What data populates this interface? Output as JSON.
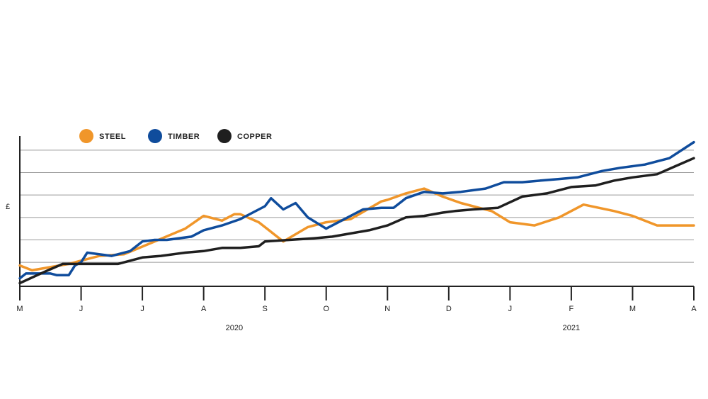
{
  "chart_data": {
    "type": "line",
    "xlabel": "",
    "ylabel": "£",
    "months": [
      "M",
      "J",
      "J",
      "A",
      "S",
      "O",
      "N",
      "D",
      "J",
      "F",
      "M",
      "A"
    ],
    "years": [
      {
        "label": "2020",
        "month_index": 3.5
      },
      {
        "label": "2021",
        "month_index": 9.0
      }
    ],
    "xlim": [
      0,
      11
    ],
    "ylim": [
      0,
      100
    ],
    "y_gridlines": [
      15,
      29,
      43,
      57,
      71,
      85
    ],
    "grid": true,
    "legend_position": "top-left",
    "series": [
      {
        "name": "STEEL",
        "color": "#f0962a",
        "points": [
          [
            0,
            13
          ],
          [
            0.2,
            10
          ],
          [
            0.5,
            12
          ],
          [
            0.8,
            14
          ],
          [
            1.0,
            16
          ],
          [
            1.1,
            17
          ],
          [
            1.3,
            19
          ],
          [
            1.7,
            20
          ],
          [
            2.2,
            28
          ],
          [
            2.7,
            36
          ],
          [
            3.0,
            44
          ],
          [
            3.3,
            41
          ],
          [
            3.5,
            45
          ],
          [
            3.6,
            45
          ],
          [
            3.9,
            40
          ],
          [
            4.3,
            28
          ],
          [
            4.7,
            37
          ],
          [
            5.0,
            40
          ],
          [
            5.4,
            42
          ],
          [
            5.9,
            53
          ],
          [
            6.0,
            54
          ],
          [
            6.3,
            58
          ],
          [
            6.6,
            61
          ],
          [
            6.9,
            56
          ],
          [
            7.2,
            52
          ],
          [
            7.5,
            49
          ],
          [
            7.7,
            47
          ],
          [
            8.0,
            40
          ],
          [
            8.4,
            38
          ],
          [
            8.8,
            43
          ],
          [
            9.2,
            51
          ],
          [
            9.7,
            47
          ],
          [
            10.0,
            44
          ],
          [
            10.4,
            38
          ],
          [
            10.9,
            38
          ],
          [
            11.0,
            38
          ]
        ]
      },
      {
        "name": "TIMBER",
        "color": "#0f4c9c",
        "points": [
          [
            0,
            5
          ],
          [
            0.1,
            8
          ],
          [
            0.5,
            8
          ],
          [
            0.6,
            7
          ],
          [
            0.8,
            7
          ],
          [
            0.9,
            13
          ],
          [
            1.0,
            15
          ],
          [
            1.1,
            21
          ],
          [
            1.5,
            19
          ],
          [
            1.8,
            22
          ],
          [
            2.0,
            28
          ],
          [
            2.2,
            29
          ],
          [
            2.4,
            29
          ],
          [
            2.8,
            31
          ],
          [
            3.0,
            35
          ],
          [
            3.3,
            38
          ],
          [
            3.6,
            42
          ],
          [
            3.8,
            46
          ],
          [
            4.0,
            50
          ],
          [
            4.1,
            55
          ],
          [
            4.3,
            48
          ],
          [
            4.5,
            52
          ],
          [
            4.7,
            43
          ],
          [
            5.0,
            36
          ],
          [
            5.3,
            42
          ],
          [
            5.6,
            48
          ],
          [
            5.9,
            49
          ],
          [
            6.1,
            49
          ],
          [
            6.3,
            55
          ],
          [
            6.6,
            59
          ],
          [
            6.9,
            58
          ],
          [
            7.2,
            59
          ],
          [
            7.4,
            60
          ],
          [
            7.6,
            61
          ],
          [
            7.9,
            65
          ],
          [
            8.2,
            65
          ],
          [
            8.5,
            66
          ],
          [
            8.8,
            67
          ],
          [
            9.1,
            68
          ],
          [
            9.5,
            72
          ],
          [
            9.8,
            74
          ],
          [
            10.2,
            76
          ],
          [
            10.6,
            80
          ],
          [
            11.0,
            90
          ]
        ]
      },
      {
        "name": "COPPER",
        "color": "#1f1f1f",
        "points": [
          [
            0,
            2
          ],
          [
            0.4,
            9
          ],
          [
            0.7,
            14
          ],
          [
            1.0,
            14
          ],
          [
            1.3,
            14
          ],
          [
            1.6,
            14
          ],
          [
            2.0,
            18
          ],
          [
            2.3,
            19
          ],
          [
            2.7,
            21
          ],
          [
            3.0,
            22
          ],
          [
            3.3,
            24
          ],
          [
            3.6,
            24
          ],
          [
            3.9,
            25
          ],
          [
            4.0,
            28
          ],
          [
            4.4,
            29
          ],
          [
            4.8,
            30
          ],
          [
            5.1,
            31
          ],
          [
            5.4,
            33
          ],
          [
            5.7,
            35
          ],
          [
            6.0,
            38
          ],
          [
            6.3,
            43
          ],
          [
            6.6,
            44
          ],
          [
            6.9,
            46
          ],
          [
            7.1,
            47
          ],
          [
            7.4,
            48
          ],
          [
            7.8,
            49
          ],
          [
            8.2,
            56
          ],
          [
            8.6,
            58
          ],
          [
            9.0,
            62
          ],
          [
            9.4,
            63
          ],
          [
            9.7,
            66
          ],
          [
            10.0,
            68
          ],
          [
            10.4,
            70
          ],
          [
            10.7,
            75
          ],
          [
            11.0,
            80
          ]
        ]
      }
    ]
  }
}
